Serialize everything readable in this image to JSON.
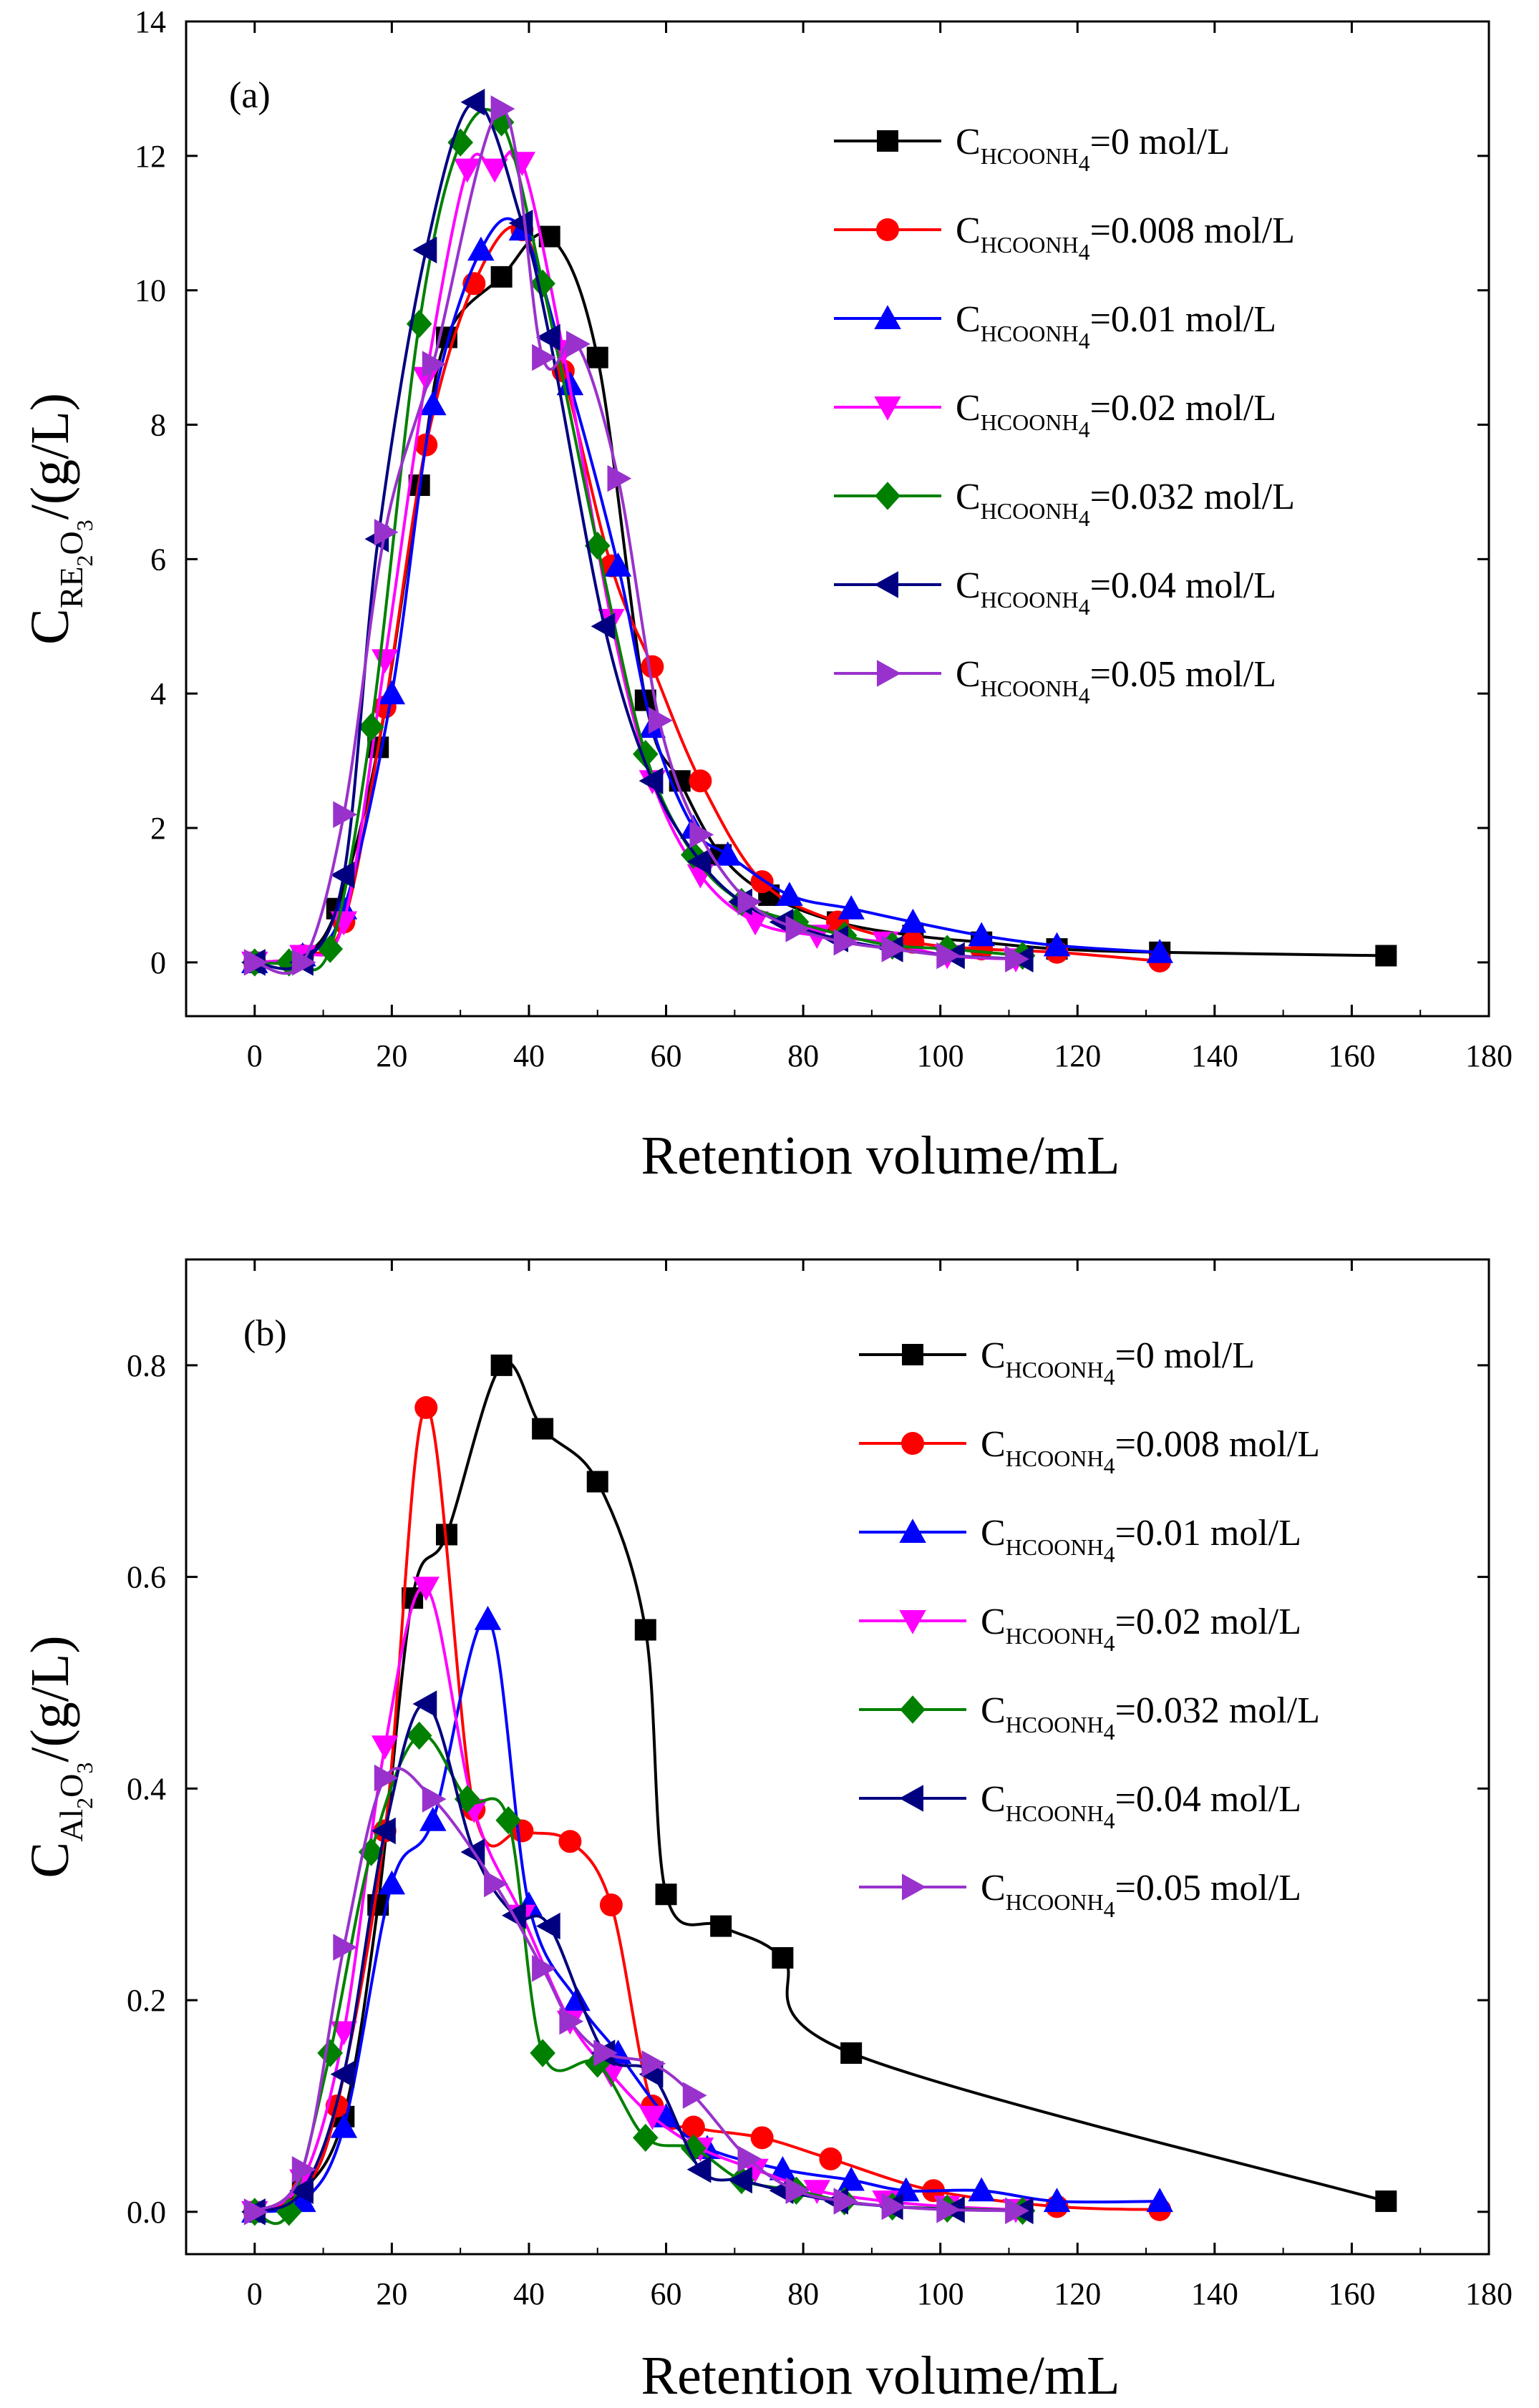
{
  "chart_data": [
    {
      "type": "line",
      "panel_label": "(a)",
      "xlabel": "Retention volume/mL",
      "ylabel": {
        "main": "C",
        "sub": "RE",
        "sub2": "2",
        "sub3": "O",
        "sub4": "3",
        "unit": "/(g/L)"
      },
      "xlim": [
        -10,
        180
      ],
      "ylim": [
        -0.8,
        14
      ],
      "xticks": [
        0,
        20,
        40,
        60,
        80,
        100,
        120,
        140,
        160,
        180
      ],
      "yticks": [
        0,
        2,
        4,
        6,
        8,
        10,
        12,
        14
      ],
      "legend_position": "top-right",
      "series": [
        {
          "name": "C_HCOONH4=0 mol/L",
          "prefix": "C",
          "sub": "HCOONH",
          "sub2": "4",
          "label": "=0 mol/L",
          "color": "#000000",
          "marker": "square",
          "x": [
            0,
            7,
            12,
            18,
            24,
            28,
            36,
            43,
            50,
            57,
            62,
            68,
            75,
            85,
            96,
            106,
            117,
            132,
            165
          ],
          "y": [
            0,
            0.1,
            0.8,
            3.2,
            7.1,
            9.3,
            10.2,
            10.8,
            9.0,
            3.9,
            2.7,
            1.6,
            1.0,
            0.6,
            0.4,
            0.3,
            0.2,
            0.15,
            0.1
          ]
        },
        {
          "name": "C_HCOONH4=0.008 mol/L",
          "prefix": "C",
          "sub": "HCOONH",
          "sub2": "4",
          "label": "=0.008 mol/L",
          "color": "#ff0000",
          "marker": "circle",
          "x": [
            0,
            7,
            13,
            19,
            25,
            32,
            39,
            45,
            52,
            58,
            65,
            74,
            85,
            96,
            106,
            117,
            132
          ],
          "y": [
            0,
            0.1,
            0.6,
            3.8,
            7.7,
            10.1,
            10.9,
            8.8,
            5.9,
            4.4,
            2.7,
            1.2,
            0.6,
            0.3,
            0.2,
            0.15,
            0.02
          ]
        },
        {
          "name": "C_HCOONH4=0.01 mol/L",
          "prefix": "C",
          "sub": "HCOONH",
          "sub2": "4",
          "label": "=0.01 mol/L",
          "color": "#0000ff",
          "marker": "triangle-up",
          "x": [
            0,
            7,
            13,
            20,
            26,
            33,
            39,
            46,
            53,
            58,
            64,
            69,
            78,
            87,
            96,
            106,
            117,
            132
          ],
          "y": [
            0,
            0.1,
            0.8,
            4.0,
            8.3,
            10.6,
            10.9,
            8.6,
            5.9,
            3.5,
            2.0,
            1.6,
            1.0,
            0.8,
            0.6,
            0.4,
            0.25,
            0.15
          ]
        },
        {
          "name": "C_HCOONH4=0.02 mol/L",
          "prefix": "C",
          "sub": "HCOONH",
          "sub2": "4",
          "label": "=0.02 mol/L",
          "color": "#ff00ff",
          "marker": "triangle-down",
          "x": [
            0,
            7,
            13,
            19,
            25,
            31,
            35,
            39,
            45,
            52,
            58,
            65,
            73,
            82,
            92,
            101,
            111
          ],
          "y": [
            0,
            0.1,
            0.6,
            4.5,
            8.7,
            11.8,
            11.8,
            11.9,
            9.1,
            5.1,
            2.7,
            1.3,
            0.6,
            0.4,
            0.3,
            0.1,
            0.05
          ]
        },
        {
          "name": "C_HCOONH4=0.032 mol/L",
          "prefix": "C",
          "sub": "HCOONH",
          "sub2": "4",
          "label": "=0.032 mol/L",
          "color": "#008000",
          "marker": "diamond",
          "x": [
            0,
            5,
            11,
            17,
            24,
            30,
            36,
            42,
            50,
            57,
            64,
            71,
            79,
            86,
            93,
            101,
            112
          ],
          "y": [
            0,
            0,
            0.2,
            3.5,
            9.5,
            12.2,
            12.5,
            10.1,
            6.2,
            3.1,
            1.6,
            0.9,
            0.6,
            0.4,
            0.25,
            0.2,
            0.1
          ]
        },
        {
          "name": "C_HCOONH4=0.04 mol/L",
          "prefix": "C",
          "sub": "HCOONH",
          "sub2": "4",
          "label": "=0.04 mol/L",
          "color": "#000080",
          "marker": "triangle-left",
          "x": [
            0,
            7,
            13,
            18,
            25,
            32,
            39,
            43,
            51,
            58,
            65,
            71,
            77,
            85,
            93,
            102,
            112
          ],
          "y": [
            0,
            0,
            1.3,
            6.3,
            10.6,
            12.8,
            11.0,
            9.3,
            5.0,
            2.7,
            1.5,
            0.9,
            0.6,
            0.35,
            0.2,
            0.1,
            0.05
          ]
        },
        {
          "name": "C_HCOONH4=0.05 mol/L",
          "prefix": "C",
          "sub": "HCOONH",
          "sub2": "4",
          "label": "=0.05 mol/L",
          "color": "#9932cc",
          "marker": "triangle-right",
          "x": [
            0,
            7,
            13,
            19,
            26,
            36,
            42,
            47,
            53,
            59,
            65,
            72,
            79,
            86,
            93,
            101,
            111
          ],
          "y": [
            0,
            0,
            2.2,
            6.4,
            8.9,
            12.7,
            9.0,
            9.2,
            7.2,
            3.6,
            1.9,
            0.9,
            0.5,
            0.3,
            0.2,
            0.1,
            0.05
          ]
        }
      ]
    },
    {
      "type": "line",
      "panel_label": "(b)",
      "xlabel": "Retention volume/mL",
      "ylabel": {
        "main": "C",
        "sub": "Al",
        "sub2": "2",
        "sub3": "O",
        "sub4": "3",
        "unit": "/(g/L)"
      },
      "xlim": [
        -10,
        180
      ],
      "ylim": [
        -0.04,
        0.9
      ],
      "xticks": [
        0,
        20,
        40,
        60,
        80,
        100,
        120,
        140,
        160,
        180
      ],
      "yticks": [
        0.0,
        0.2,
        0.4,
        0.6,
        0.8
      ],
      "ytick_labels": [
        "0.0",
        "0.2",
        "0.4",
        "0.6",
        "0.8"
      ],
      "legend_position": "top-right",
      "series": [
        {
          "name": "C_HCOONH4=0 mol/L",
          "prefix": "C",
          "sub": "HCOONH",
          "sub2": "4",
          "label": "=0 mol/L",
          "color": "#000000",
          "marker": "square",
          "x": [
            0,
            7,
            13,
            18,
            23,
            28,
            36,
            42,
            50,
            57,
            60,
            68,
            77,
            87,
            165
          ],
          "y": [
            0,
            0.02,
            0.09,
            0.29,
            0.58,
            0.64,
            0.8,
            0.74,
            0.69,
            0.55,
            0.3,
            0.27,
            0.24,
            0.15,
            0.01
          ]
        },
        {
          "name": "C_HCOONH4=0.008 mol/L",
          "prefix": "C",
          "sub": "HCOONH",
          "sub2": "4",
          "label": "=0.008 mol/L",
          "color": "#ff0000",
          "marker": "circle",
          "x": [
            0,
            7,
            12,
            19,
            25,
            32,
            39,
            46,
            52,
            58,
            64,
            74,
            84,
            99,
            117,
            132
          ],
          "y": [
            0,
            0.02,
            0.1,
            0.36,
            0.76,
            0.38,
            0.36,
            0.35,
            0.29,
            0.1,
            0.08,
            0.07,
            0.05,
            0.02,
            0.005,
            0.002
          ]
        },
        {
          "name": "C_HCOONH4=0.01 mol/L",
          "prefix": "C",
          "sub": "HCOONH",
          "sub2": "4",
          "label": "=0.01 mol/L",
          "color": "#0000ff",
          "marker": "triangle-up",
          "x": [
            0,
            7,
            13,
            20,
            26,
            34,
            40,
            47,
            53,
            60,
            66,
            77,
            87,
            95,
            106,
            117,
            132
          ],
          "y": [
            0,
            0.01,
            0.08,
            0.31,
            0.37,
            0.56,
            0.29,
            0.2,
            0.15,
            0.09,
            0.06,
            0.04,
            0.03,
            0.02,
            0.02,
            0.01,
            0.01
          ]
        },
        {
          "name": "C_HCOONH4=0.02 mol/L",
          "prefix": "C",
          "sub": "HCOONH",
          "sub2": "4",
          "label": "=0.02 mol/L",
          "color": "#ff00ff",
          "marker": "triangle-down",
          "x": [
            0,
            7,
            13,
            19,
            25,
            32,
            39,
            46,
            52,
            58,
            65,
            73,
            82,
            92,
            101,
            111
          ],
          "y": [
            0,
            0.03,
            0.17,
            0.44,
            0.59,
            0.38,
            0.28,
            0.18,
            0.13,
            0.09,
            0.06,
            0.04,
            0.02,
            0.01,
            0.005,
            0.002
          ]
        },
        {
          "name": "C_HCOONH4=0.032 mol/L",
          "prefix": "C",
          "sub": "HCOONH",
          "sub2": "4",
          "label": "=0.032 mol/L",
          "color": "#008000",
          "marker": "diamond",
          "x": [
            0,
            5,
            11,
            17,
            24,
            31,
            37,
            42,
            50,
            57,
            64,
            71,
            79,
            86,
            93,
            101,
            112
          ],
          "y": [
            0,
            0,
            0.15,
            0.34,
            0.45,
            0.39,
            0.37,
            0.15,
            0.14,
            0.07,
            0.06,
            0.03,
            0.02,
            0.01,
            0.005,
            0.003,
            0.001
          ]
        },
        {
          "name": "C_HCOONH4=0.04 mol/L",
          "prefix": "C",
          "sub": "HCOONH",
          "sub2": "4",
          "label": "=0.04 mol/L",
          "color": "#000080",
          "marker": "triangle-left",
          "x": [
            0,
            7,
            13,
            19,
            25,
            32,
            38,
            43,
            51,
            58,
            65,
            71,
            77,
            85,
            93,
            102,
            112
          ],
          "y": [
            0,
            0.02,
            0.13,
            0.36,
            0.48,
            0.34,
            0.28,
            0.27,
            0.15,
            0.13,
            0.04,
            0.03,
            0.02,
            0.01,
            0.005,
            0.002,
            0.001
          ]
        },
        {
          "name": "C_HCOONH4=0.05 mol/L",
          "prefix": "C",
          "sub": "HCOONH",
          "sub2": "4",
          "label": "=0.05 mol/L",
          "color": "#9932cc",
          "marker": "triangle-right",
          "x": [
            0,
            7,
            13,
            19,
            26,
            35,
            42,
            46,
            51,
            58,
            64,
            72,
            79,
            86,
            93,
            101,
            111
          ],
          "y": [
            0,
            0.04,
            0.25,
            0.41,
            0.39,
            0.31,
            0.23,
            0.18,
            0.15,
            0.14,
            0.11,
            0.05,
            0.02,
            0.01,
            0.005,
            0.002,
            0.001
          ]
        }
      ]
    }
  ]
}
